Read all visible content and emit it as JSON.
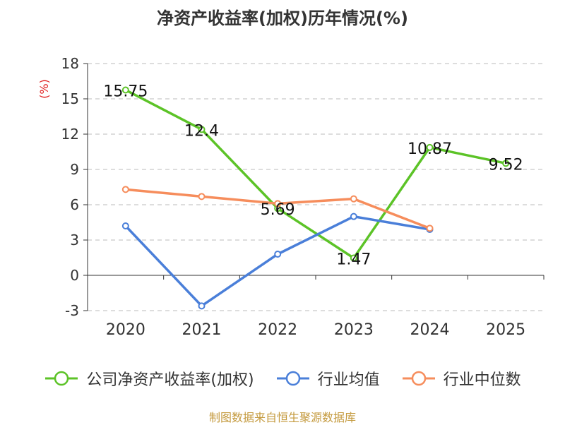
{
  "title": "净资产收益率(加权)历年情况(%)",
  "source": "制图数据来自恒生聚源数据库",
  "chart_data": {
    "type": "line",
    "title": "净资产收益率(加权)历年情况(%)",
    "ylabel": "(%)",
    "ylim": [
      -3,
      18
    ],
    "yticks": [
      -3,
      0,
      3,
      6,
      9,
      12,
      15,
      18
    ],
    "grid": true,
    "legend_position": "bottom",
    "categories": [
      "2020",
      "2021",
      "2022",
      "2023",
      "2024",
      "2025"
    ],
    "series": [
      {
        "name": "公司净资产收益率(加权)",
        "color": "#5cc327",
        "values": [
          15.75,
          12.4,
          5.69,
          1.47,
          10.87,
          9.52
        ],
        "labels": [
          "15.75",
          "12.4",
          "5.69",
          "1.47",
          "10.87",
          "9.52"
        ]
      },
      {
        "name": "行业均值",
        "color": "#4a7fd9",
        "values": [
          4.2,
          -2.6,
          1.8,
          5.0,
          3.9,
          null
        ]
      },
      {
        "name": "行业中位数",
        "color": "#f68d5c",
        "values": [
          7.3,
          6.7,
          6.1,
          6.5,
          4.0,
          null
        ]
      }
    ]
  }
}
